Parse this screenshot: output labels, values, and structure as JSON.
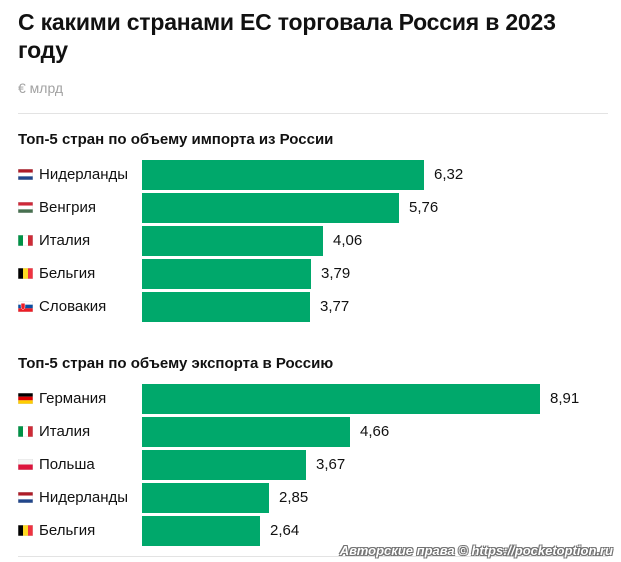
{
  "title": "С какими странами ЕС торговала Россия в 2023 году",
  "unit": "€ млрд",
  "colors": {
    "bar": "#00a86b",
    "text": "#111111",
    "muted": "#a2a2a2"
  },
  "watermark": "Авторские права © https://pocketoption.ru",
  "chart_data": [
    {
      "type": "bar",
      "orientation": "horizontal",
      "title": "Топ-5 стран по объему импорта из России",
      "xlabel": "",
      "ylabel": "€ млрд",
      "xlim": [
        0,
        8.91
      ],
      "categories": [
        "Нидерланды",
        "Венгрия",
        "Италия",
        "Бельгия",
        "Словакия"
      ],
      "flags": [
        "nl",
        "hu",
        "it",
        "be",
        "sk"
      ],
      "values": [
        6.32,
        5.76,
        4.06,
        3.79,
        3.77
      ],
      "labels": [
        "6,32",
        "5,76",
        "4,06",
        "3,79",
        "3,77"
      ]
    },
    {
      "type": "bar",
      "orientation": "horizontal",
      "title": "Топ-5 стран по объему экспорта в Россию",
      "xlabel": "",
      "ylabel": "€ млрд",
      "xlim": [
        0,
        8.91
      ],
      "categories": [
        "Германия",
        "Италия",
        "Польша",
        "Нидерланды",
        "Бельгия"
      ],
      "flags": [
        "de",
        "it",
        "pl",
        "nl",
        "be"
      ],
      "values": [
        8.91,
        4.66,
        3.67,
        2.85,
        2.64
      ],
      "labels": [
        "8,91",
        "4,66",
        "3,67",
        "2,85",
        "2,64"
      ]
    }
  ]
}
